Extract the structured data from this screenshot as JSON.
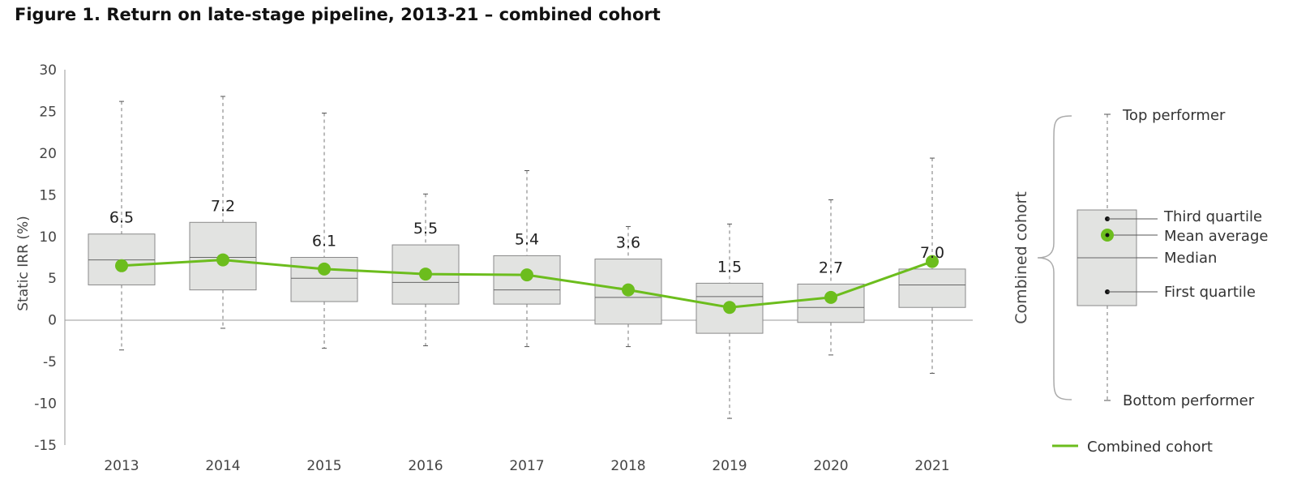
{
  "title": "Figure 1. Return on late-stage pipeline, 2013-21 – combined cohort",
  "colors": {
    "accent": "#6cbd1d",
    "box_fill": "#e2e3e1",
    "box_stroke": "#8a8a8a",
    "whisker": "#777777",
    "axis": "#9a9a9a"
  },
  "chart_data": {
    "type": "box",
    "ylabel": "Static  IRR (%)",
    "ylim": [
      -15,
      30
    ],
    "yticks": [
      "30",
      "25",
      "20",
      "15",
      "10",
      "5",
      "0",
      "-5",
      "-10",
      "-15"
    ],
    "categories": [
      "2013",
      "2014",
      "2015",
      "2016",
      "2017",
      "2018",
      "2019",
      "2020",
      "2021"
    ],
    "boxes": [
      {
        "min": -3.6,
        "q1": 4.2,
        "median": 7.2,
        "q3": 10.3,
        "max": 26.2
      },
      {
        "min": -1.0,
        "q1": 3.6,
        "median": 7.5,
        "q3": 11.7,
        "max": 26.8
      },
      {
        "min": -3.4,
        "q1": 2.2,
        "median": 5.0,
        "q3": 7.5,
        "max": 24.8
      },
      {
        "min": -3.1,
        "q1": 1.9,
        "median": 4.5,
        "q3": 9.0,
        "max": 15.1
      },
      {
        "min": -3.2,
        "q1": 1.9,
        "median": 3.6,
        "q3": 7.7,
        "max": 17.9
      },
      {
        "min": -3.2,
        "q1": -0.5,
        "median": 2.7,
        "q3": 7.3,
        "max": 11.2
      },
      {
        "min": -11.8,
        "q1": -1.6,
        "median": 2.8,
        "q3": 4.4,
        "max": 11.5
      },
      {
        "min": -4.2,
        "q1": -0.3,
        "median": 1.5,
        "q3": 4.3,
        "max": 14.4
      },
      {
        "min": -6.4,
        "q1": 1.5,
        "median": 4.2,
        "q3": 6.1,
        "max": 19.4
      }
    ],
    "series": [
      {
        "name": "Combined cohort",
        "values": [
          6.5,
          7.2,
          6.1,
          5.5,
          5.4,
          3.6,
          1.5,
          2.7,
          7.0
        ],
        "labels": [
          "6.5",
          "7.2",
          "6.1",
          "5.5",
          "5.4",
          "3.6",
          "1.5",
          "2.7",
          "7.0"
        ]
      }
    ],
    "legend": {
      "label": "Combined cohort",
      "position": "bottom-right"
    }
  },
  "key": {
    "cohort_label": "Combined cohort",
    "top": "Top performer",
    "q3": "Third quartile",
    "mean": "Mean average",
    "median": "Median",
    "q1": "First quartile",
    "bottom": "Bottom performer"
  }
}
